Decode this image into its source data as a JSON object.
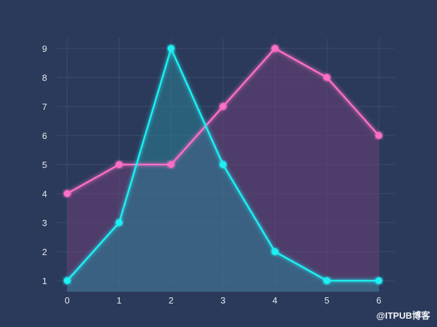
{
  "watermark": "@ITPUB博客",
  "chart_data": {
    "type": "area",
    "x": [
      0,
      1,
      2,
      3,
      4,
      5,
      6
    ],
    "xlim": [
      0,
      6
    ],
    "ylim": [
      1,
      9
    ],
    "xticks": [
      "0",
      "1",
      "2",
      "3",
      "4",
      "5",
      "6"
    ],
    "yticks": [
      "1",
      "2",
      "3",
      "4",
      "5",
      "6",
      "7",
      "8",
      "9"
    ],
    "grid": true,
    "background": "#2b3a5a",
    "series": [
      {
        "values": [
          4,
          5,
          5,
          7,
          9,
          8,
          6
        ],
        "color": "#ff6ec7",
        "fill": "#6b3f7a"
      },
      {
        "values": [
          1,
          3,
          9,
          5,
          2,
          1,
          1
        ],
        "color": "#1ff0f5",
        "fill": "#2a7f95"
      }
    ]
  }
}
